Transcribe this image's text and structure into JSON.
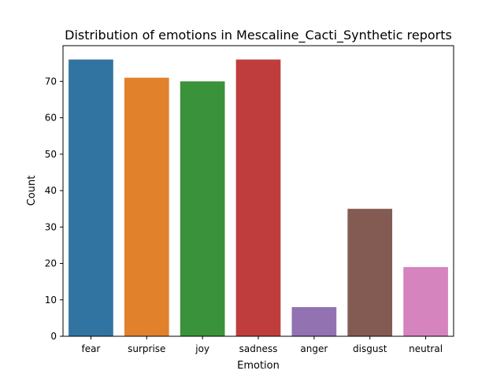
{
  "chart_data": {
    "type": "bar",
    "title": "Distribution of emotions in Mescaline_Cacti_Synthetic reports",
    "xlabel": "Emotion",
    "ylabel": "Count",
    "categories": [
      "fear",
      "surprise",
      "joy",
      "sadness",
      "anger",
      "disgust",
      "neutral"
    ],
    "values": [
      76,
      71,
      70,
      76,
      8,
      35,
      19
    ],
    "colors": [
      "#3274a1",
      "#e1812c",
      "#3a923a",
      "#c03d3e",
      "#9372b2",
      "#845b53",
      "#d684bd"
    ],
    "ylim": [
      0,
      79.8
    ],
    "yticks": [
      0,
      10,
      20,
      30,
      40,
      50,
      60,
      70
    ],
    "grid": false,
    "legend": "none"
  }
}
